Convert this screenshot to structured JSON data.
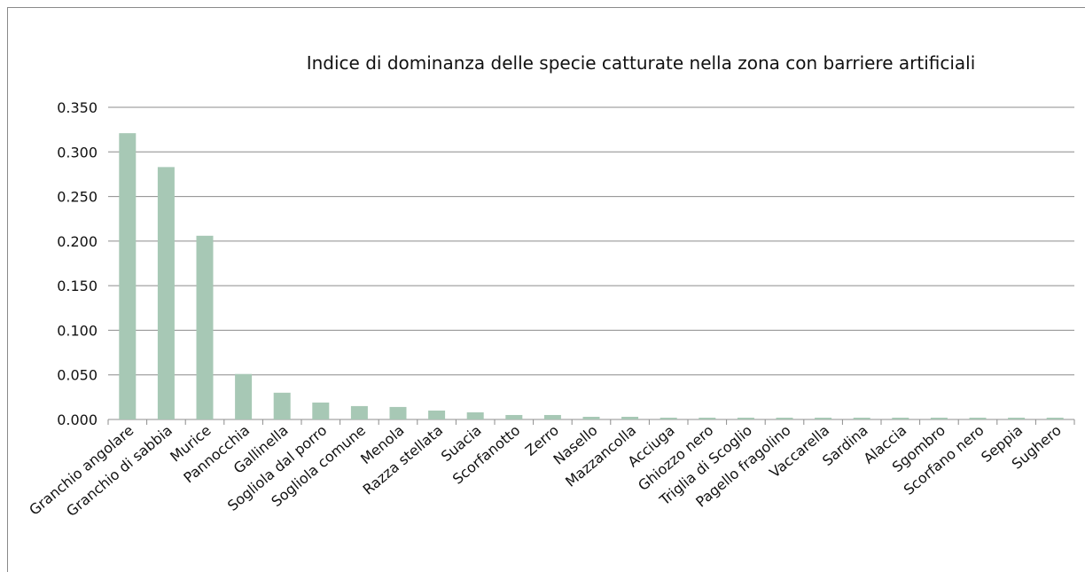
{
  "chart_data": {
    "type": "bar",
    "title": "Indice di dominanza  delle specie catturate nella zona con barriere artificiali",
    "categories": [
      "Granchio angolare",
      "Granchio di sabbia",
      "Murice",
      "Pannocchia",
      "Gallinella",
      "Sogliola dal porro",
      "Sogliola comune",
      "Menola",
      "Razza stellata",
      "Suacia",
      "Scorfanotto",
      "Zerro",
      "Nasello",
      "Mazzancolla",
      "Acciuga",
      "Ghiozzo nero",
      "Triglia di Scoglio",
      "Pagello fragolino",
      "Vaccarella",
      "Sardina",
      "Alaccia",
      "Sgombro",
      "Scorfano nero",
      "Seppia",
      "Sughero"
    ],
    "values": [
      0.321,
      0.283,
      0.206,
      0.051,
      0.03,
      0.019,
      0.015,
      0.014,
      0.01,
      0.008,
      0.005,
      0.005,
      0.003,
      0.003,
      0.002,
      0.002,
      0.002,
      0.002,
      0.002,
      0.002,
      0.002,
      0.002,
      0.002,
      0.002,
      0.002
    ],
    "color": "#a7c8b5",
    "ylim": [
      0,
      0.35
    ],
    "yticks": [
      {
        "value": 0,
        "label": "0.000"
      },
      {
        "value": 0.05,
        "label": "0.050"
      },
      {
        "value": 0.1,
        "label": "0.100"
      },
      {
        "value": 0.15,
        "label": "0.150"
      },
      {
        "value": 0.2,
        "label": "0.200"
      },
      {
        "value": 0.25,
        "label": "0.250"
      },
      {
        "value": 0.3,
        "label": "0.300"
      },
      {
        "value": 0.35,
        "label": "0.350"
      }
    ],
    "grid": true
  }
}
